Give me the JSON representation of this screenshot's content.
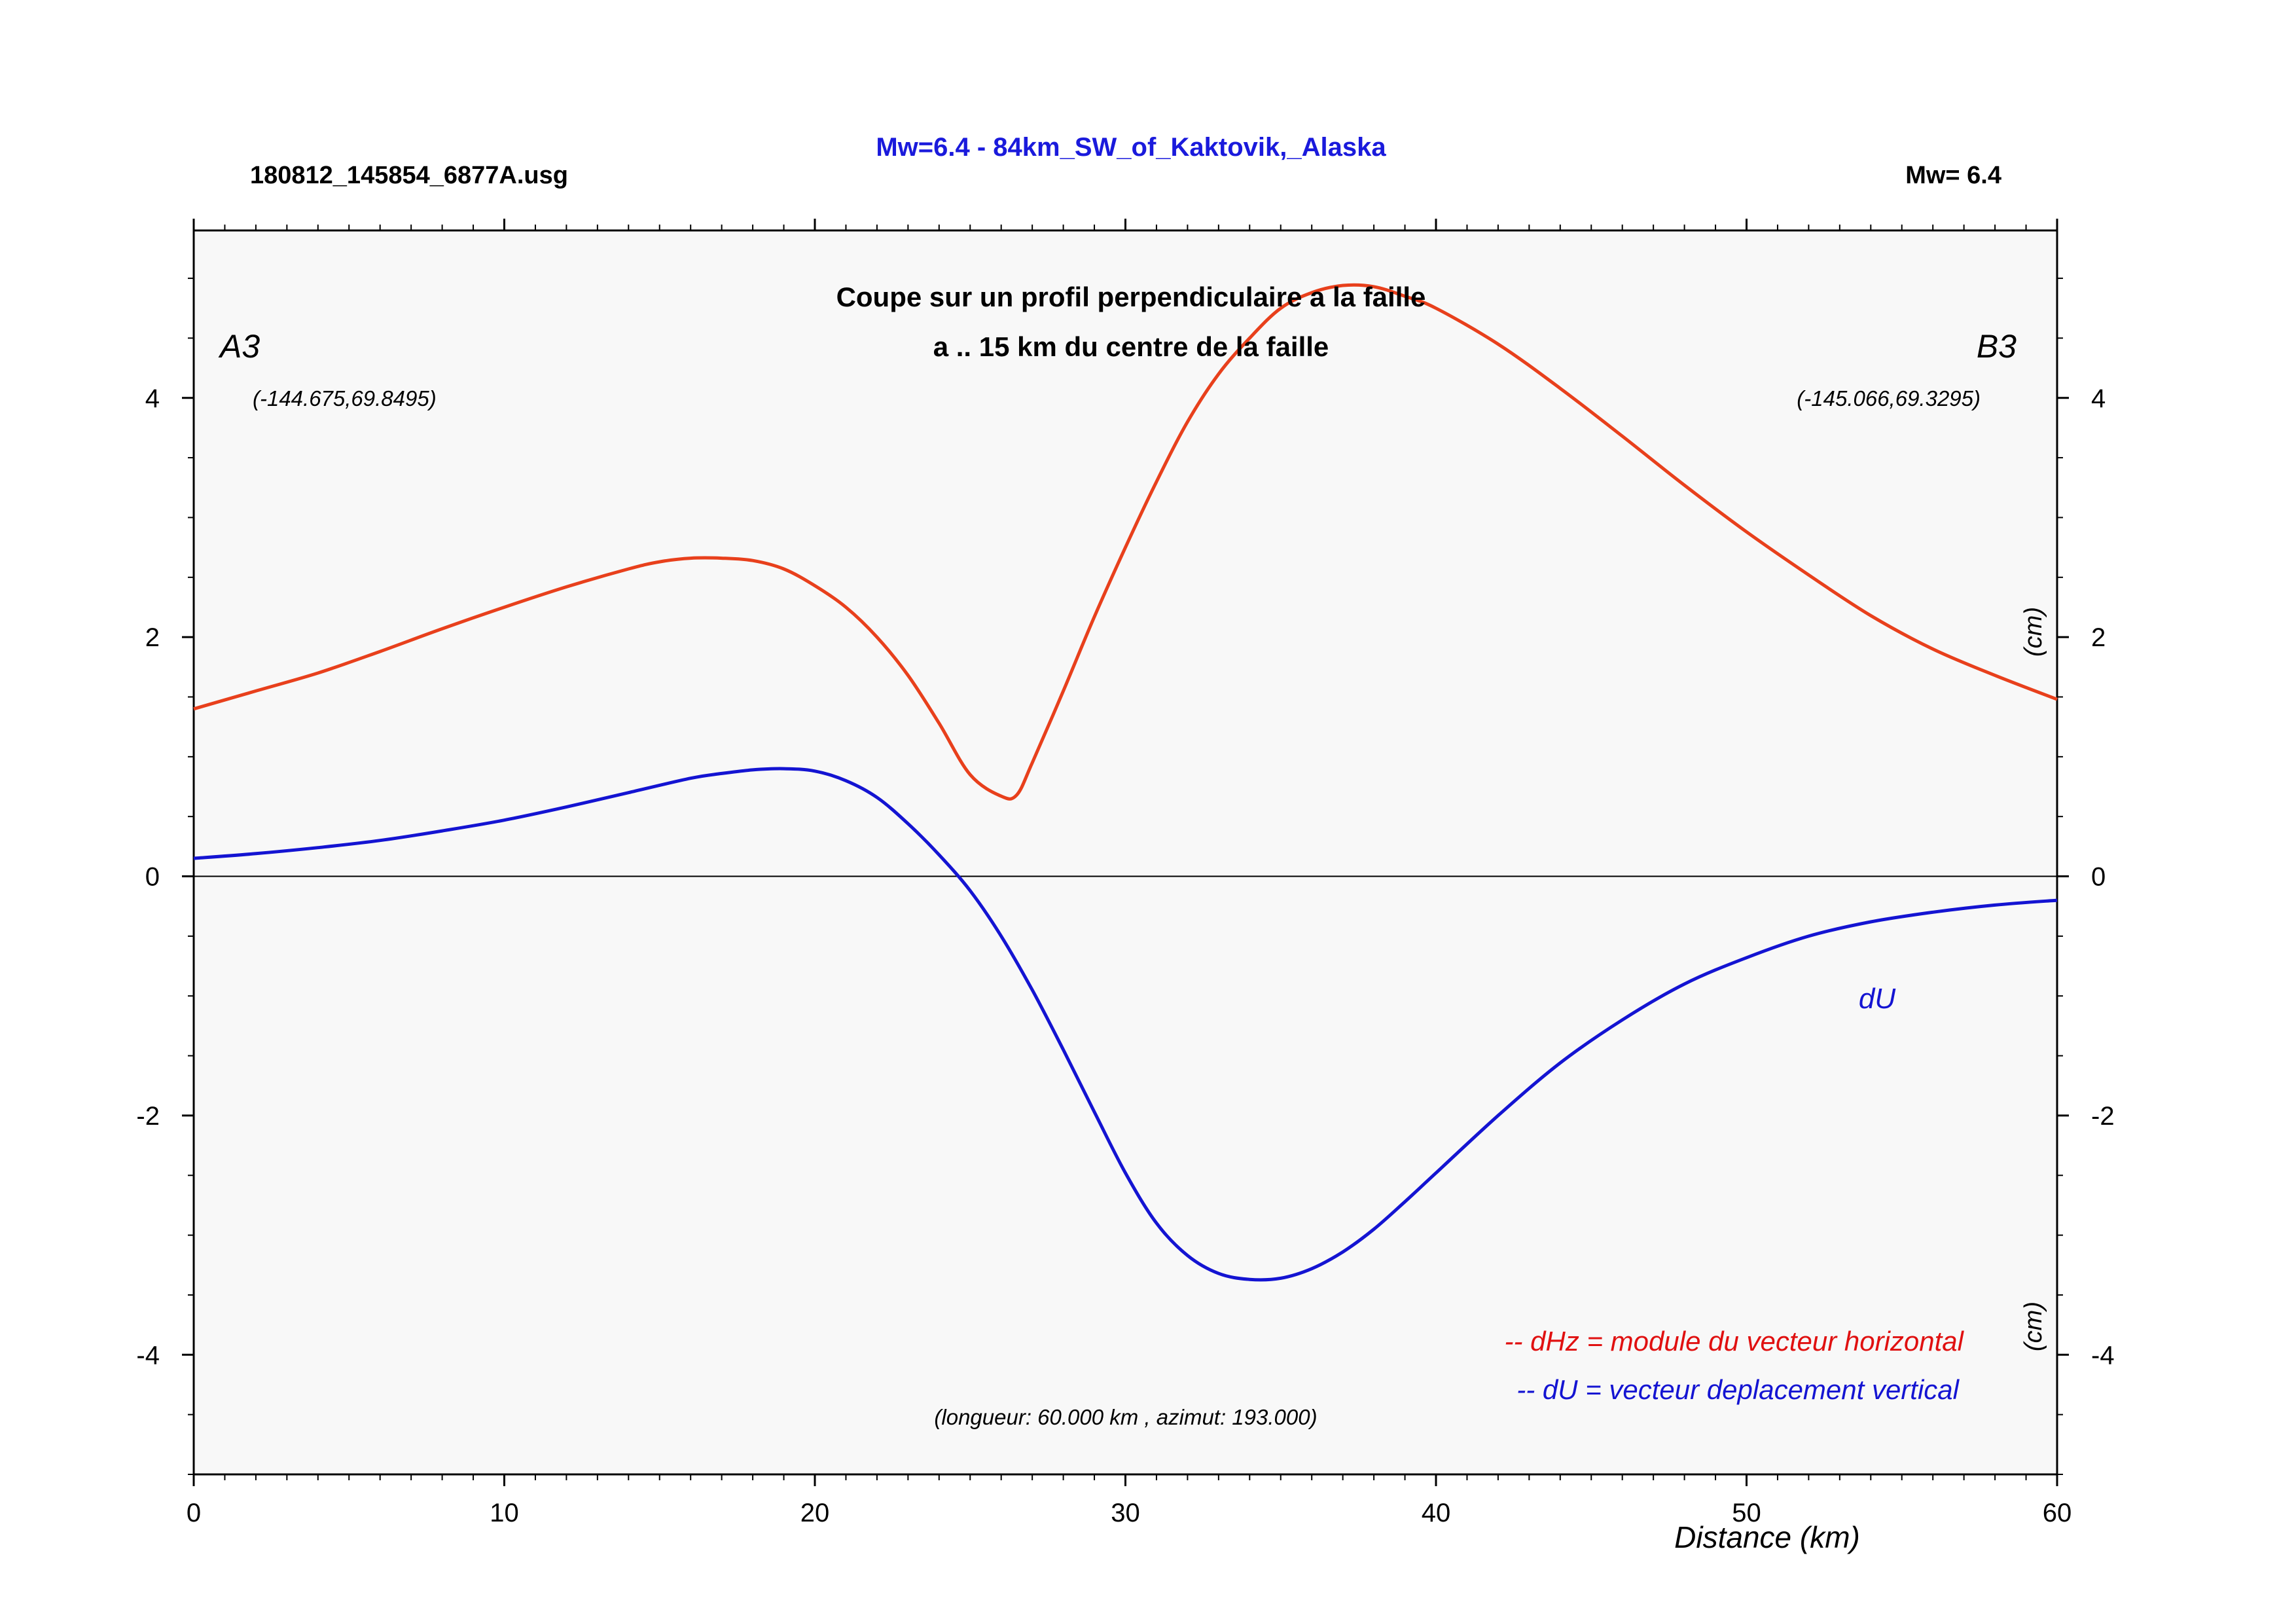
{
  "header": {
    "file_label": "180812_145854_6877A.usg",
    "main_title": "Mw=6.4 - 84km_SW_of_Kaktovik,_Alaska",
    "magnitude_label": "Mw= 6.4"
  },
  "plot": {
    "subtitle_line1": "Coupe sur un profil perpendiculaire a la faille",
    "subtitle_line2": "a .. 15 km du centre de la faille",
    "point_a_label": "A3",
    "point_a_coords": "(-144.675,69.8495)",
    "point_b_label": "B3",
    "point_b_coords": "(-145.066,69.3295)",
    "du_label": "dU",
    "legend_dhz": "-- dHz = module du vecteur horizontal",
    "legend_du": "-- dU =  vecteur deplacement vertical",
    "profile_info": "(longueur: 60.000 km , azimut: 193.000)",
    "unit_label_upper": "(cm)",
    "unit_label_lower": "(cm)",
    "x_axis_label": "Distance (km)"
  },
  "colors": {
    "title": "#1a1adc",
    "dhz": "#e8401c",
    "du": "#1414d2",
    "legend_dhz": "#e01010",
    "legend_du": "#1414d2",
    "plot_bg": "#f8f8f8"
  },
  "chart_data": {
    "type": "line",
    "xlim": [
      0,
      60
    ],
    "ylim": [
      -5,
      5.4
    ],
    "x_ticks": [
      0,
      10,
      20,
      30,
      40,
      50,
      60
    ],
    "x_tick_labels": [
      "0",
      "10",
      "20",
      "30",
      "40",
      "50",
      "60"
    ],
    "y_ticks": [
      -4,
      -2,
      0,
      2,
      4
    ],
    "y_tick_labels": [
      "-4",
      "-2",
      "0",
      "2",
      "4"
    ],
    "series": [
      {
        "name": "dHz",
        "x": [
          0,
          2,
          4,
          6,
          8,
          10,
          12,
          14,
          15,
          16,
          17,
          18,
          19,
          20,
          21,
          22,
          23,
          24,
          25,
          26,
          26.5,
          27,
          28,
          29,
          30,
          31,
          32,
          33,
          34,
          35,
          36,
          37,
          38,
          39,
          40,
          42,
          44,
          46,
          48,
          50,
          52,
          54,
          56,
          58,
          60
        ],
        "y": [
          1.4,
          1.55,
          1.7,
          1.88,
          2.07,
          2.25,
          2.42,
          2.57,
          2.63,
          2.66,
          2.66,
          2.64,
          2.57,
          2.43,
          2.25,
          2.0,
          1.68,
          1.28,
          0.85,
          0.67,
          0.68,
          0.95,
          1.55,
          2.17,
          2.75,
          3.3,
          3.8,
          4.2,
          4.5,
          4.75,
          4.88,
          4.94,
          4.93,
          4.85,
          4.75,
          4.45,
          4.08,
          3.68,
          3.27,
          2.88,
          2.52,
          2.18,
          1.9,
          1.68,
          1.48
        ]
      },
      {
        "name": "dU",
        "x": [
          0,
          2,
          4,
          6,
          8,
          10,
          12,
          14,
          16,
          17,
          18,
          19,
          20,
          21,
          22,
          23,
          24,
          25,
          26,
          27,
          28,
          29,
          30,
          31,
          32,
          33,
          34,
          35,
          36,
          37,
          38,
          39,
          40,
          42,
          44,
          46,
          48,
          50,
          52,
          54,
          56,
          58,
          60
        ],
        "y": [
          0.15,
          0.19,
          0.24,
          0.3,
          0.38,
          0.47,
          0.58,
          0.7,
          0.82,
          0.86,
          0.89,
          0.9,
          0.88,
          0.8,
          0.66,
          0.44,
          0.18,
          -0.12,
          -0.5,
          -0.95,
          -1.45,
          -1.97,
          -2.48,
          -2.9,
          -3.17,
          -3.32,
          -3.37,
          -3.36,
          -3.28,
          -3.14,
          -2.95,
          -2.72,
          -2.48,
          -2.0,
          -1.56,
          -1.2,
          -0.9,
          -0.68,
          -0.5,
          -0.38,
          -0.3,
          -0.24,
          -0.2
        ]
      }
    ]
  }
}
